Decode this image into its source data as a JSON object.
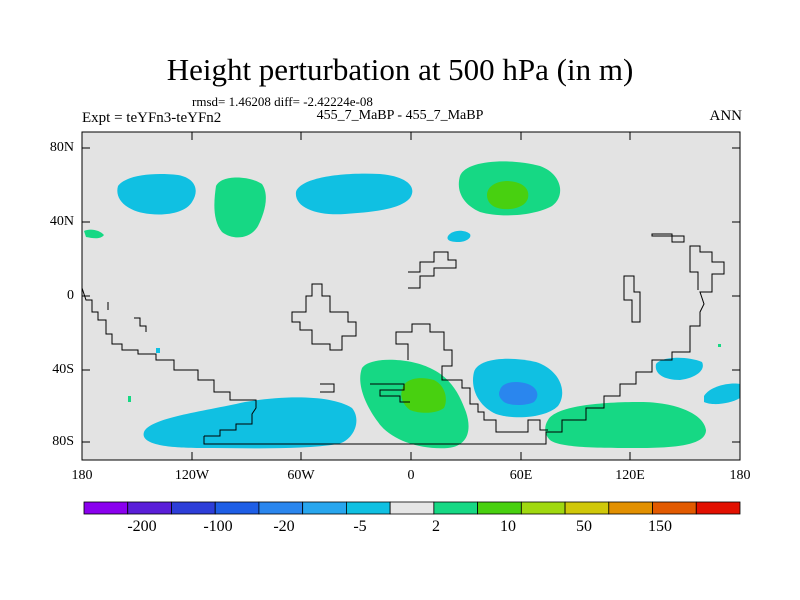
{
  "title": "Height perturbation at 500 hPa (in m)",
  "stats": "rmsd= 1.46208  diff= -2.42224e-08",
  "expt_label": "Expt = teYFn3-teYFn2",
  "case_label": "455_7_MaBP - 455_7_MaBP",
  "season": "ANN",
  "lat_labels": [
    "80N",
    "40N",
    "0",
    "40S",
    "80S"
  ],
  "lon_labels": [
    "180",
    "120W",
    "60W",
    "0",
    "60E",
    "120E",
    "180"
  ],
  "colorbar": {
    "colors": [
      "#8a00ee",
      "#5a1ed8",
      "#2d3ed8",
      "#1e5ee6",
      "#2a86ee",
      "#28a6ee",
      "#10c0e2",
      "#e6e6e6",
      "#16d884",
      "#48d010",
      "#a0d810",
      "#d0c80a",
      "#e29000",
      "#e25a00",
      "#e21000"
    ],
    "labels": [
      "-200",
      "-100",
      "-20",
      "-5",
      "2",
      "10",
      "50",
      "150"
    ]
  },
  "colors": {
    "background": "#e3e3e3",
    "negative_anomaly": "#10c0e2",
    "strong_negative_anomaly": "#2a86ee",
    "positive_anomaly": "#16d884",
    "strong_positive_anomaly": "#48d010",
    "coastline": "#000000"
  }
}
